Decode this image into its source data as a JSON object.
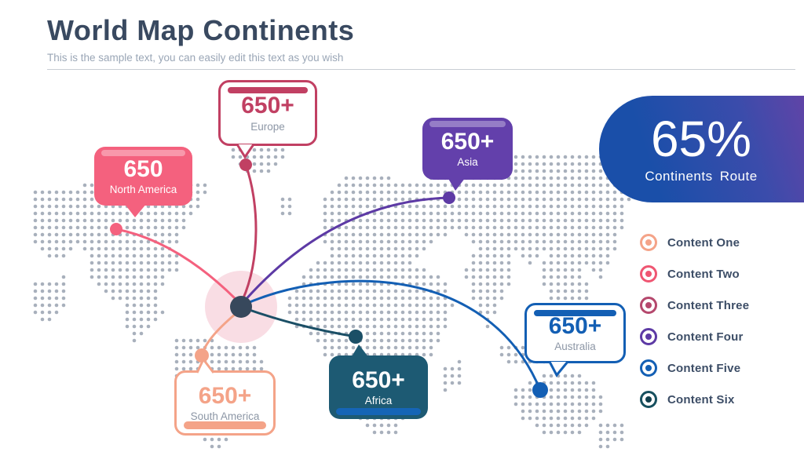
{
  "header": {
    "title": "World Map Continents",
    "subtitle": "This is the sample text, you can easily edit this text as you wish"
  },
  "callouts": {
    "north_america": {
      "value": "650",
      "label": "North America",
      "color": "#f4617e",
      "style": "filled"
    },
    "europe": {
      "value": "650+",
      "label": "Europe",
      "color": "#c14063",
      "style": "outlined"
    },
    "asia": {
      "value": "650+",
      "label": "Asia",
      "color": "#6340ab",
      "style": "filled"
    },
    "australia": {
      "value": "650+",
      "label": "Australia",
      "color": "#135fb4",
      "style": "outlined"
    },
    "africa": {
      "value": "650+",
      "label": "Africa",
      "color": "#1d5a73",
      "style": "filled"
    },
    "south_america": {
      "value": "650+",
      "label": "South America",
      "color": "#f4a388",
      "style": "outlined"
    }
  },
  "banner": {
    "value": "65%",
    "label": "Continents Route",
    "gradient_start": "#1a4fa9",
    "gradient_end": "#6d41a5"
  },
  "legend": {
    "items": [
      {
        "label": "Content One",
        "color": "#f4a388"
      },
      {
        "label": "Content Two",
        "color": "#ef5672"
      },
      {
        "label": "Content Three",
        "color": "#b5486d"
      },
      {
        "label": "Content Four",
        "color": "#5d3aa5"
      },
      {
        "label": "Content Five",
        "color": "#135fb4"
      },
      {
        "label": "Content Six",
        "color": "#17505f"
      }
    ]
  },
  "map": {
    "dot_color": "#a8b0bc",
    "hub_color": "#37485c",
    "halo_color": "#f3bcc9"
  }
}
